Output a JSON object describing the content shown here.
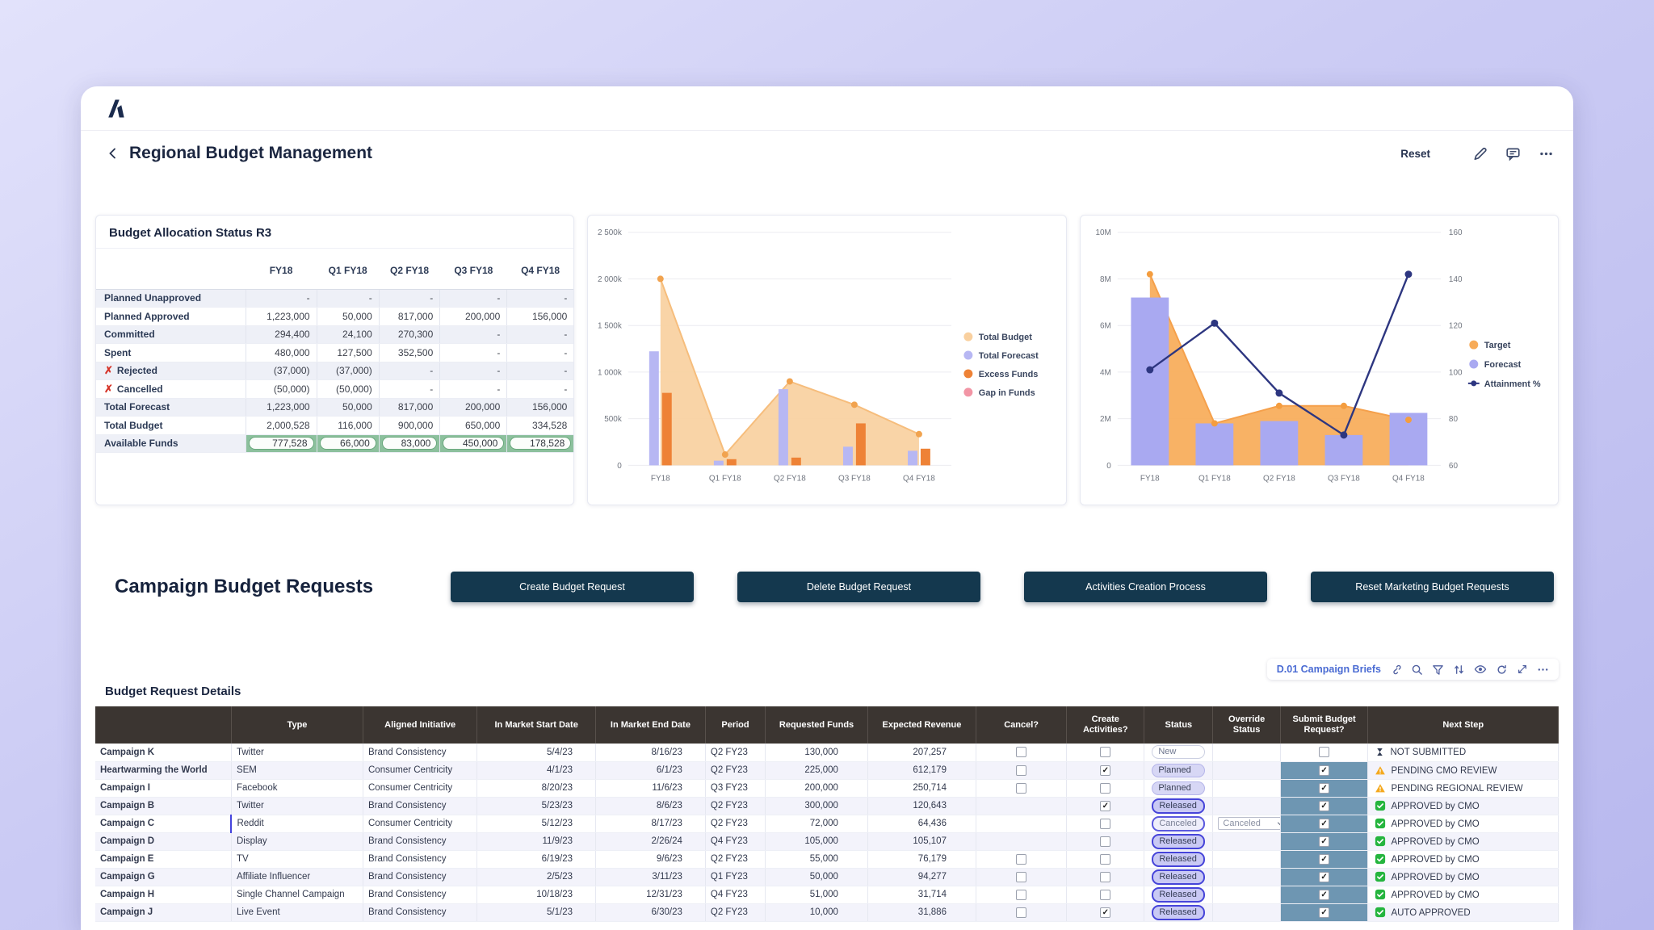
{
  "header": {
    "logo": "anaplan-logo",
    "title": "Regional Budget Management",
    "reset_label": "Reset",
    "icons": [
      "back-icon",
      "edit-icon",
      "comment-icon",
      "more-icon"
    ]
  },
  "colors": {
    "page_accent": "#c3c3f2",
    "button_dark": "#14384e",
    "available_funds_green": "#8cc09d",
    "submit_cell_blue": "#6e96b2",
    "link_blue": "#5a5ad8",
    "header_dark": "#3b3531",
    "released_border": "#4644d9"
  },
  "allocation": {
    "title": "Budget Allocation Status R3",
    "columns": [
      "FY18",
      "Q1 FY18",
      "Q2 FY18",
      "Q3 FY18",
      "Q4 FY18"
    ],
    "rows": [
      {
        "label": "Planned Unapproved",
        "icon": "",
        "values": [
          "-",
          "-",
          "-",
          "-",
          "-"
        ]
      },
      {
        "label": "Planned Approved",
        "icon": "",
        "values": [
          "1,223,000",
          "50,000",
          "817,000",
          "200,000",
          "156,000"
        ]
      },
      {
        "label": "Committed",
        "icon": "",
        "values": [
          "294,400",
          "24,100",
          "270,300",
          "-",
          "-"
        ]
      },
      {
        "label": "Spent",
        "icon": "",
        "values": [
          "480,000",
          "127,500",
          "352,500",
          "-",
          "-"
        ]
      },
      {
        "label": "Rejected",
        "icon": "x-icon",
        "values": [
          "(37,000)",
          "(37,000)",
          "-",
          "-",
          "-"
        ]
      },
      {
        "label": "Cancelled",
        "icon": "x-icon",
        "values": [
          "(50,000)",
          "(50,000)",
          "-",
          "-",
          "-"
        ]
      },
      {
        "label": "Total Forecast",
        "icon": "",
        "values": [
          "1,223,000",
          "50,000",
          "817,000",
          "200,000",
          "156,000"
        ]
      },
      {
        "label": "Total Budget",
        "icon": "",
        "values": [
          "2,000,528",
          "116,000",
          "900,000",
          "650,000",
          "334,528"
        ]
      },
      {
        "label": "Available Funds",
        "icon": "",
        "highlight": true,
        "values": [
          "777,528",
          "66,000",
          "83,000",
          "450,000",
          "178,528"
        ]
      }
    ]
  },
  "chart_data": [
    {
      "type": "combo",
      "title": "",
      "categories": [
        "FY18",
        "Q1 FY18",
        "Q2 FY18",
        "Q3 FY18",
        "Q4 FY18"
      ],
      "ylim": [
        0,
        2500000
      ],
      "grid": true,
      "legend_position": "right",
      "yticks": [
        {
          "v": 0,
          "label": "0"
        },
        {
          "v": 500000,
          "label": "500k"
        },
        {
          "v": 1000000,
          "label": "1 000k"
        },
        {
          "v": 1500000,
          "label": "1 500k"
        },
        {
          "v": 2000000,
          "label": "2 000k"
        },
        {
          "v": 2500000,
          "label": "2 500k"
        }
      ],
      "series": [
        {
          "name": "Total Budget",
          "type": "area",
          "color": "#f9d09f",
          "line_color": "#f6bd7c",
          "marker_color": "#f1a34f",
          "values": [
            2000528,
            116000,
            900000,
            650000,
            334528
          ]
        },
        {
          "name": "Total Forecast",
          "type": "bar",
          "color": "#b7b7f3",
          "values": [
            1223000,
            50000,
            817000,
            200000,
            156000
          ]
        },
        {
          "name": "Excess Funds",
          "type": "bar",
          "color": "#ee8236",
          "values": [
            777528,
            66000,
            83000,
            450000,
            178528
          ]
        },
        {
          "name": "Gap in Funds",
          "type": "bar",
          "color": "#f295a5",
          "values": [
            0,
            0,
            0,
            0,
            0
          ]
        }
      ]
    },
    {
      "type": "combo",
      "title": "",
      "categories": [
        "FY18",
        "Q1 FY18",
        "Q2 FY18",
        "Q3 FY18",
        "Q4 FY18"
      ],
      "ylim": [
        0,
        10000000
      ],
      "y2lim": [
        60,
        160
      ],
      "grid": true,
      "legend_position": "right",
      "yticks": [
        {
          "v": 0,
          "label": "0"
        },
        {
          "v": 2000000,
          "label": "2M"
        },
        {
          "v": 4000000,
          "label": "4M"
        },
        {
          "v": 6000000,
          "label": "6M"
        },
        {
          "v": 8000000,
          "label": "8M"
        },
        {
          "v": 10000000,
          "label": "10M"
        }
      ],
      "y2ticks": [
        {
          "v": 60,
          "label": "60"
        },
        {
          "v": 80,
          "label": "80"
        },
        {
          "v": 100,
          "label": "100"
        },
        {
          "v": 120,
          "label": "120"
        },
        {
          "v": 140,
          "label": "140"
        },
        {
          "v": 160,
          "label": "160"
        }
      ],
      "series": [
        {
          "name": "Target",
          "type": "area",
          "color": "#f7ab58",
          "line_color": "#f5a04b",
          "marker_color": "#f49d3f",
          "values": [
            8200000,
            1800000,
            2550000,
            2550000,
            1950000
          ]
        },
        {
          "name": "Forecast",
          "type": "bar",
          "color": "#a9a9f1",
          "values": [
            7200000,
            1800000,
            1900000,
            1300000,
            2250000
          ]
        },
        {
          "name": "Attainment %",
          "type": "line",
          "axis": "y2",
          "color": "#2d3680",
          "values": [
            101,
            121,
            91,
            73,
            142
          ]
        }
      ]
    }
  ],
  "campaign_section": {
    "title": "Campaign Budget Requests",
    "buttons": [
      "Create Budget Request",
      "Delete Budget Request",
      "Activities Creation Process",
      "Reset Marketing Budget Requests"
    ]
  },
  "details": {
    "title": "Budget Request Details",
    "toolbar": {
      "link_label": "D.01 Campaign Briefs",
      "icons": [
        "link-icon",
        "search-icon",
        "filter-icon",
        "sort-icon",
        "eye-icon",
        "refresh-icon",
        "resize-icon",
        "more-icon"
      ]
    },
    "columns": [
      "",
      "Type",
      "Aligned Initiative",
      "In Market Start Date",
      "In Market End Date",
      "Period",
      "Requested Funds",
      "Expected Revenue",
      "Cancel?",
      "Create Activities?",
      "Status",
      "Override Status",
      "Submit Budget Request?",
      "Next Step"
    ],
    "rows": [
      {
        "name": "Campaign K",
        "type": "Twitter",
        "selected": false,
        "initiative": "Brand Consistency",
        "initiative_link": true,
        "start": "5/4/23",
        "end": "8/16/23",
        "period": "Q2 FY23",
        "requested": "130,000",
        "requested_link": true,
        "revenue": "207,257",
        "cancel": "box",
        "create": "box",
        "status": "New",
        "status_style": "new",
        "override": "",
        "submit": "off-white",
        "next_icon": "hourglass-icon",
        "next_label": "NOT SUBMITTED"
      },
      {
        "name": "Heartwarming the World",
        "type": "SEM",
        "selected": false,
        "initiative": "Consumer Centricity",
        "initiative_link": false,
        "start": "4/1/23",
        "end": "6/1/23",
        "period": "Q2 FY23",
        "requested": "225,000",
        "requested_link": false,
        "revenue": "612,179",
        "cancel": "box",
        "create": "checked",
        "status": "Planned",
        "status_style": "planned",
        "override": "",
        "submit": "checked",
        "next_icon": "warning-icon",
        "next_label": "PENDING CMO REVIEW"
      },
      {
        "name": "Campaign I",
        "type": "Facebook",
        "selected": false,
        "initiative": "Consumer Centricity",
        "initiative_link": false,
        "start": "8/20/23",
        "end": "11/6/23",
        "period": "Q3 FY23",
        "requested": "200,000",
        "requested_link": false,
        "revenue": "250,714",
        "cancel": "box",
        "create": "box",
        "status": "Planned",
        "status_style": "planned",
        "override": "",
        "submit": "checked",
        "next_icon": "warning-icon",
        "next_label": "PENDING REGIONAL REVIEW"
      },
      {
        "name": "Campaign B",
        "type": "Twitter",
        "selected": false,
        "initiative": "Brand Consistency",
        "initiative_link": false,
        "start": "5/23/23",
        "end": "8/6/23",
        "period": "Q2 FY23",
        "requested": "300,000",
        "requested_link": false,
        "revenue": "120,643",
        "cancel": "none",
        "create": "checked",
        "status": "Released",
        "status_style": "released",
        "override": "",
        "submit": "checked",
        "next_icon": "approved-icon",
        "next_label": "APPROVED by CMO"
      },
      {
        "name": "Campaign C",
        "type": "Reddit",
        "selected": true,
        "initiative": "Consumer Centricity",
        "initiative_link": false,
        "start": "5/12/23",
        "end": "8/17/23",
        "period": "Q2 FY23",
        "requested": "72,000",
        "requested_link": false,
        "revenue": "64,436",
        "cancel": "none",
        "create": "box",
        "status": "Canceled",
        "status_style": "canceled",
        "override": "Canceled",
        "submit": "checked",
        "next_icon": "approved-icon",
        "next_label": "APPROVED by CMO"
      },
      {
        "name": "Campaign D",
        "type": "Display",
        "selected": false,
        "initiative": "Brand Consistency",
        "initiative_link": false,
        "start": "11/9/23",
        "end": "2/26/24",
        "period": "Q4 FY23",
        "requested": "105,000",
        "requested_link": false,
        "revenue": "105,107",
        "cancel": "none",
        "create": "box",
        "status": "Released",
        "status_style": "released",
        "override": "",
        "submit": "checked",
        "next_icon": "approved-icon",
        "next_label": "APPROVED by CMO"
      },
      {
        "name": "Campaign E",
        "type": "TV",
        "selected": false,
        "initiative": "Brand Consistency",
        "initiative_link": false,
        "start": "6/19/23",
        "end": "9/6/23",
        "period": "Q2 FY23",
        "requested": "55,000",
        "requested_link": false,
        "revenue": "76,179",
        "cancel": "box",
        "create": "box",
        "status": "Released",
        "status_style": "released",
        "override": "",
        "submit": "checked",
        "next_icon": "approved-icon",
        "next_label": "APPROVED by CMO"
      },
      {
        "name": "Campaign G",
        "type": "Affiliate Influencer",
        "selected": false,
        "initiative": "Brand Consistency",
        "initiative_link": false,
        "start": "2/5/23",
        "end": "3/11/23",
        "period": "Q1 FY23",
        "requested": "50,000",
        "requested_link": false,
        "revenue": "94,277",
        "cancel": "box",
        "create": "box",
        "status": "Released",
        "status_style": "released",
        "override": "",
        "submit": "checked",
        "next_icon": "approved-icon",
        "next_label": "APPROVED by CMO"
      },
      {
        "name": "Campaign H",
        "type": "Single Channel Campaign",
        "selected": false,
        "initiative": "Brand Consistency",
        "initiative_link": false,
        "start": "10/18/23",
        "end": "12/31/23",
        "period": "Q4 FY23",
        "requested": "51,000",
        "requested_link": false,
        "revenue": "31,714",
        "cancel": "box",
        "create": "box",
        "status": "Released",
        "status_style": "released",
        "override": "",
        "submit": "checked",
        "next_icon": "approved-icon",
        "next_label": "APPROVED by CMO"
      },
      {
        "name": "Campaign J",
        "type": "Live Event",
        "selected": false,
        "initiative": "Brand Consistency",
        "initiative_link": false,
        "start": "5/1/23",
        "end": "6/30/23",
        "period": "Q2 FY23",
        "requested": "10,000",
        "requested_link": false,
        "revenue": "31,886",
        "cancel": "box",
        "create": "checked",
        "status": "Released",
        "status_style": "released",
        "override": "",
        "submit": "checked",
        "next_icon": "approved-icon",
        "next_label": "AUTO APPROVED"
      }
    ]
  }
}
